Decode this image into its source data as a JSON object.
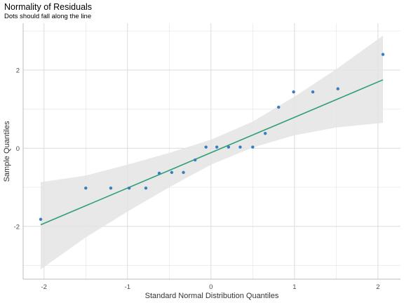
{
  "chart_data": {
    "type": "scatter",
    "title": "Normality of Residuals",
    "subtitle": "Dots should fall along the line",
    "xlabel": "Standard Normal Distribution Quantiles",
    "ylabel": "Sample Quantiles",
    "xlim": [
      -2.25,
      2.27
    ],
    "ylim": [
      -3.35,
      3.2
    ],
    "xticks": [
      -2,
      -1,
      0,
      1,
      2
    ],
    "xtick_labels": [
      "-2",
      "-1",
      "0",
      "1",
      "2"
    ],
    "yticks": [
      -2,
      0,
      2
    ],
    "ytick_labels": [
      "-2",
      "0",
      "2"
    ],
    "grid": true,
    "colors": {
      "points": "#3a7ebf",
      "line": "#2e9e78",
      "band": "#e4e4e4",
      "grid": "#dcdcdc"
    },
    "points": {
      "x": [
        -2.04,
        -1.5,
        -1.2,
        -0.98,
        -0.78,
        -0.62,
        -0.47,
        -0.33,
        -0.19,
        -0.06,
        0.07,
        0.21,
        0.35,
        0.5,
        0.65,
        0.81,
        0.99,
        1.22,
        1.52,
        2.06
      ],
      "y": [
        -1.82,
        -1.02,
        -1.02,
        -1.02,
        -1.02,
        -0.64,
        -0.62,
        -0.62,
        -0.3,
        0.03,
        0.03,
        0.03,
        0.03,
        0.03,
        0.38,
        1.05,
        1.44,
        1.44,
        1.52,
        2.4
      ]
    },
    "reference_line": {
      "x": [
        -2.04,
        2.06
      ],
      "y": [
        -1.96,
        1.75
      ]
    },
    "confidence_band": {
      "x": [
        -2.04,
        -1.5,
        -1.0,
        -0.5,
        0.0,
        0.5,
        1.0,
        1.5,
        2.06
      ],
      "lower": [
        -3.1,
        -2.28,
        -1.62,
        -1.0,
        -0.42,
        0.02,
        0.33,
        0.53,
        0.65
      ],
      "upper": [
        -0.87,
        -0.7,
        -0.42,
        -0.12,
        0.22,
        0.68,
        1.32,
        2.02,
        2.88
      ]
    }
  }
}
